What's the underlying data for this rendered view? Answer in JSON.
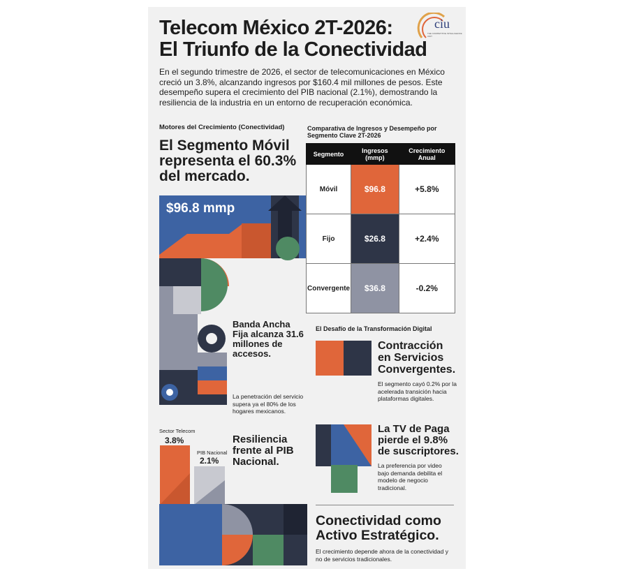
{
  "header": {
    "title_line1": "Telecom México 2T-2026:",
    "title_line2": "El Triunfo de la Conectividad",
    "logo": "ciu",
    "logo_tagline": "THE COMPETITIVE INTELLIGENCE UNIT"
  },
  "intro": "En el segundo trimestre de 2026, el sector de telecomunicaciones en México creció un 3.8%, alcanzando ingresos por $160.4 mil millones de pesos. Este desempeño supera el crecimiento del PIB nacional (2.1%), demostrando la resiliencia de la industria en un entorno de recuperación económica.",
  "mobile": {
    "section_label": "Motores del Crecimiento (Conectividad)",
    "headline": "El Segmento Móvil representa el 60.3% del mercado.",
    "figure": "$96.8 mmp"
  },
  "table": {
    "title": "Comparativa de Ingresos y Desempeño por Segmento Clave 2T-2026",
    "headers": [
      "Segmento",
      "Ingresos (mmp)",
      "Crecimiento Anual"
    ],
    "rows": [
      [
        "Móvil",
        "$96.8",
        "+5.8%"
      ],
      [
        "Fijo",
        "$26.8",
        "+2.4%"
      ],
      [
        "Convergente",
        "$36.8",
        "-0.2%"
      ]
    ]
  },
  "broadband": {
    "headline": "Banda Ancha Fija alcanza 31.6 millones de accesos.",
    "note": "La penetración del servicio supera ya el 80% de los hogares mexicanos."
  },
  "pib": {
    "telecom_label": "Sector Telecom",
    "telecom_value": "3.8%",
    "pib_label": "PIB Nacional",
    "pib_value": "2.1%",
    "headline": "Resiliencia frente al PIB Nacional."
  },
  "digital": {
    "section_label": "El Desafío de la Transformación Digital",
    "items": [
      {
        "headline": "Contracción en Servicios Convergentes.",
        "note": "El segmento cayó 0.2% por la acelerada transición hacia plataformas digitales."
      },
      {
        "headline": "La TV de Paga pierde el 9.8% de suscriptores.",
        "note": "La preferencia por video bajo demanda debilita el modelo de negocio tradicional."
      }
    ],
    "closing_headline": "Conectividad como Activo Estratégico.",
    "closing_note": "El crecimiento depende ahora de la conectividad y no de servicios tradicionales."
  }
}
